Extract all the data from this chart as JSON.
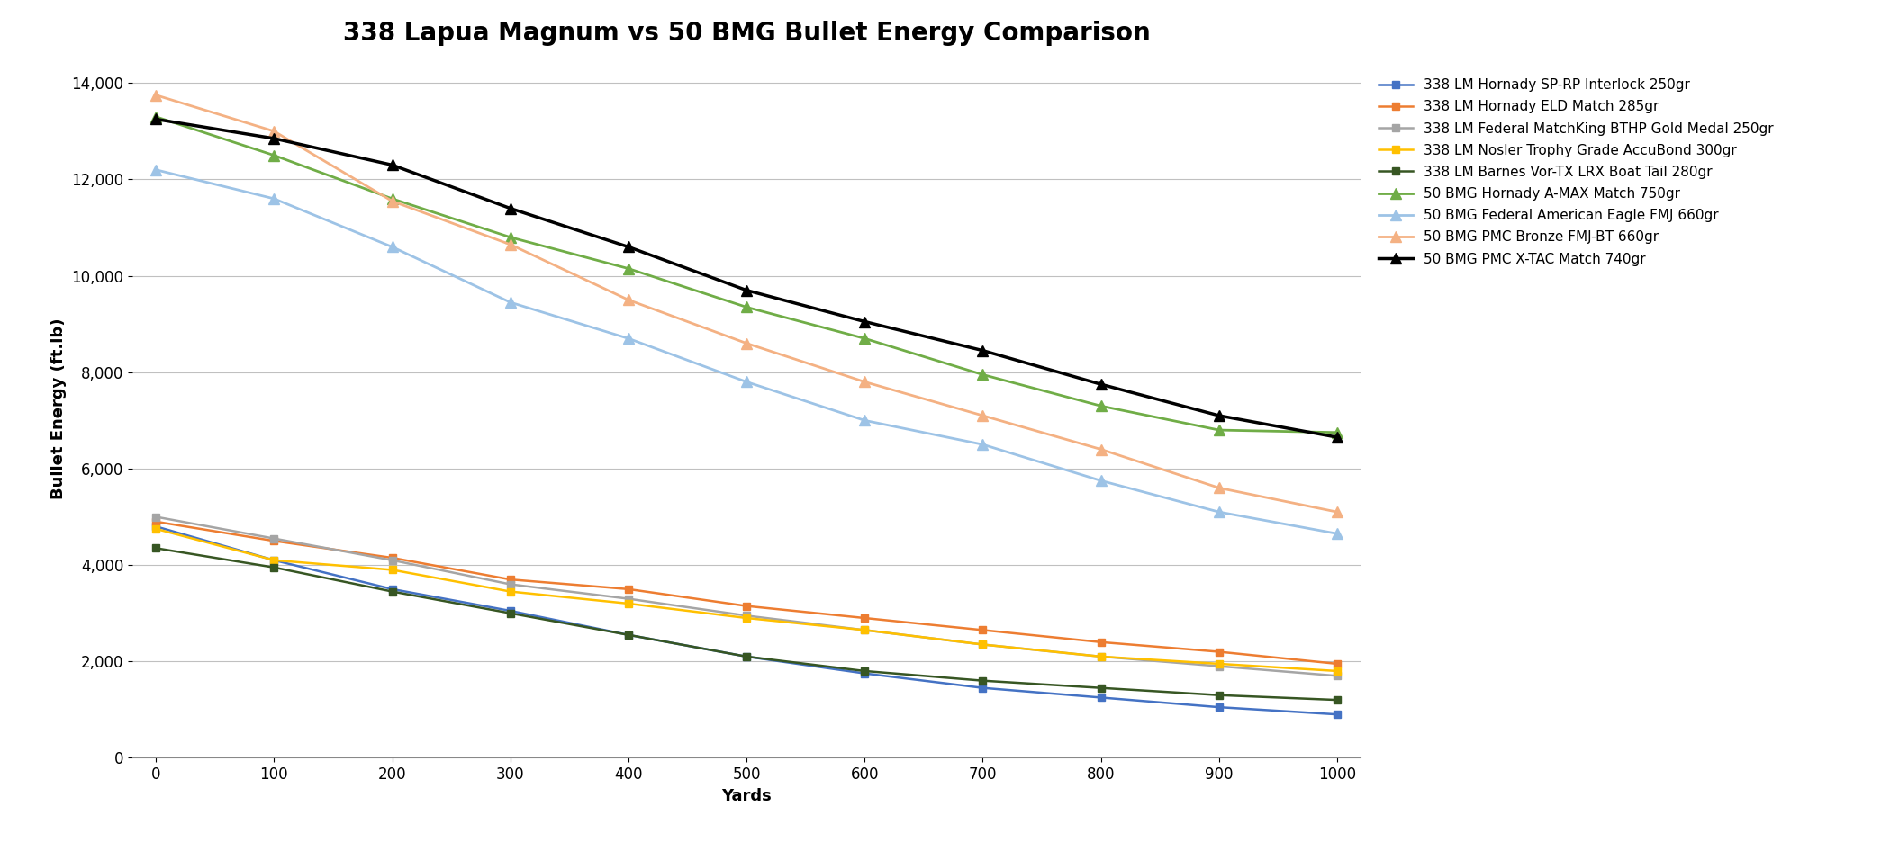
{
  "title": "338 Lapua Magnum vs 50 BMG Bullet Energy Comparison",
  "xlabel": "Yards",
  "ylabel": "Bullet Energy (ft.lb)",
  "yards": [
    0,
    100,
    200,
    300,
    400,
    500,
    600,
    700,
    800,
    900,
    1000
  ],
  "series": [
    {
      "label": "338 LM Hornady SP-RP Interlock 250gr",
      "color": "#4472C4",
      "marker": "s",
      "marker_size": 6,
      "linewidth": 1.8,
      "values": [
        4800,
        4100,
        3500,
        3050,
        2550,
        2100,
        1750,
        1450,
        1250,
        1050,
        900
      ]
    },
    {
      "label": "338 LM Hornady ELD Match 285gr",
      "color": "#ED7D31",
      "marker": "s",
      "marker_size": 6,
      "linewidth": 1.8,
      "values": [
        4900,
        4500,
        4150,
        3700,
        3500,
        3150,
        2900,
        2650,
        2400,
        2200,
        1950
      ]
    },
    {
      "label": "338 LM Federal MatchKing BTHP Gold Medal 250gr",
      "color": "#A5A5A5",
      "marker": "s",
      "marker_size": 6,
      "linewidth": 1.8,
      "values": [
        5000,
        4550,
        4100,
        3600,
        3300,
        2950,
        2650,
        2350,
        2100,
        1900,
        1700
      ]
    },
    {
      "label": "338 LM Nosler Trophy Grade AccuBond 300gr",
      "color": "#FFC000",
      "marker": "s",
      "marker_size": 6,
      "linewidth": 1.8,
      "values": [
        4750,
        4100,
        3900,
        3450,
        3200,
        2900,
        2650,
        2350,
        2100,
        1950,
        1800
      ]
    },
    {
      "label": "338 LM Barnes Vor-TX LRX Boat Tail 280gr",
      "color": "#375623",
      "marker": "s",
      "marker_size": 6,
      "linewidth": 1.8,
      "values": [
        4350,
        3950,
        3450,
        3000,
        2550,
        2100,
        1800,
        1600,
        1450,
        1300,
        1200
      ]
    },
    {
      "label": "50 BMG Hornady A-MAX Match 750gr",
      "color": "#70AD47",
      "marker": "^",
      "marker_size": 8,
      "linewidth": 2.0,
      "values": [
        13300,
        12500,
        11600,
        10800,
        10150,
        9350,
        8700,
        7950,
        7300,
        6800,
        6750
      ]
    },
    {
      "label": "50 BMG Federal American Eagle FMJ 660gr",
      "color": "#9DC3E6",
      "marker": "^",
      "marker_size": 8,
      "linewidth": 2.0,
      "values": [
        12200,
        11600,
        10600,
        9450,
        8700,
        7800,
        7000,
        6500,
        5750,
        5100,
        4650
      ]
    },
    {
      "label": "50 BMG PMC Bronze FMJ-BT 660gr",
      "color": "#F4B183",
      "marker": "^",
      "marker_size": 8,
      "linewidth": 2.0,
      "values": [
        13750,
        13000,
        11550,
        10650,
        9500,
        8600,
        7800,
        7100,
        6400,
        5600,
        5100
      ]
    },
    {
      "label": "50 BMG PMC X-TAC Match 740gr",
      "color": "#000000",
      "marker": "^",
      "marker_size": 9,
      "linewidth": 2.5,
      "values": [
        13250,
        12850,
        12300,
        11400,
        10600,
        9700,
        9050,
        8450,
        7750,
        7100,
        6650
      ]
    }
  ],
  "ylim": [
    0,
    14500
  ],
  "yticks": [
    0,
    2000,
    4000,
    6000,
    8000,
    10000,
    12000,
    14000
  ],
  "xlim": [
    -20,
    1020
  ],
  "xticks": [
    0,
    100,
    200,
    300,
    400,
    500,
    600,
    700,
    800,
    900,
    1000
  ],
  "background_color": "#FFFFFF",
  "grid_color": "#C0C0C0",
  "title_fontsize": 20,
  "label_fontsize": 13,
  "tick_fontsize": 12,
  "legend_fontsize": 11
}
